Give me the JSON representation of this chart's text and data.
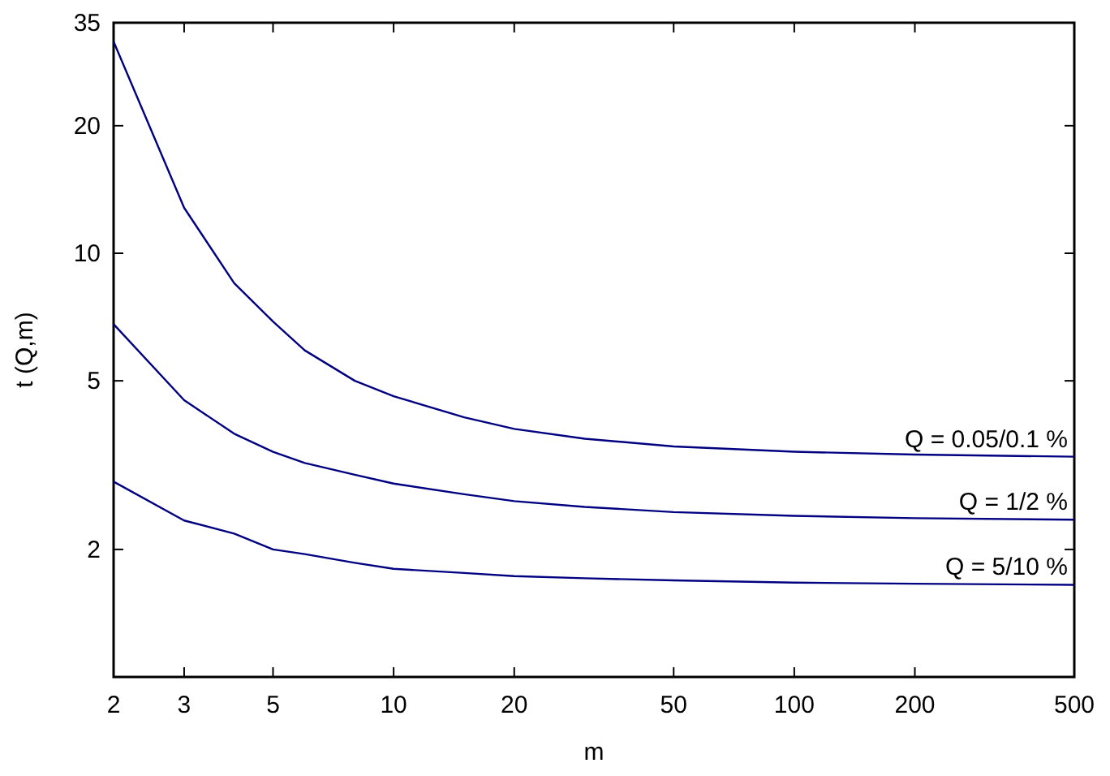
{
  "chart_data": {
    "type": "line",
    "xlabel": "m",
    "ylabel": "t (Q,m)",
    "log": "xy",
    "xlim": [
      2,
      500
    ],
    "ylim": [
      1,
      35
    ],
    "xticks": [
      2,
      3,
      5,
      10,
      20,
      50,
      100,
      200,
      500
    ],
    "yticks": [
      2,
      5,
      10,
      20,
      35
    ],
    "x": [
      2,
      3,
      4,
      5,
      6,
      8,
      10,
      15,
      20,
      30,
      50,
      100,
      200,
      500
    ],
    "series": [
      {
        "name": "Q = 0.05/0.1 %",
        "color": "#000080",
        "values": [
          31.6,
          12.8,
          8.5,
          6.9,
          5.9,
          5.0,
          4.6,
          4.1,
          3.85,
          3.65,
          3.5,
          3.4,
          3.35,
          3.31
        ]
      },
      {
        "name": "Q = 1/2 %",
        "color": "#000080",
        "values": [
          6.8,
          4.5,
          3.75,
          3.4,
          3.2,
          3.0,
          2.86,
          2.7,
          2.6,
          2.52,
          2.45,
          2.4,
          2.37,
          2.35
        ]
      },
      {
        "name": "Q = 5/10 %",
        "color": "#000080",
        "values": [
          2.89,
          2.34,
          2.18,
          2.0,
          1.95,
          1.86,
          1.8,
          1.76,
          1.73,
          1.71,
          1.69,
          1.67,
          1.66,
          1.65
        ]
      }
    ]
  }
}
